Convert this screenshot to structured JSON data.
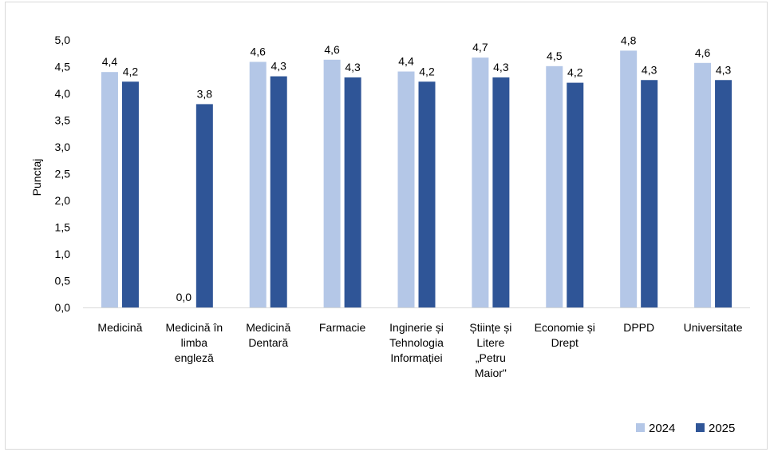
{
  "chart_data": {
    "type": "bar",
    "ylabel": "Punctaj",
    "xlabel": "",
    "ylim": [
      0,
      5
    ],
    "yticks": [
      "0,0",
      "0,5",
      "1,0",
      "1,5",
      "2,0",
      "2,5",
      "3,0",
      "3,5",
      "4,0",
      "4,5",
      "5,0"
    ],
    "grid": false,
    "legend_position": "bottom-right",
    "categories": [
      [
        "Medicină"
      ],
      [
        "Medicină în",
        "limba",
        "engleză"
      ],
      [
        "Medicină",
        "Dentară"
      ],
      [
        "Farmacie"
      ],
      [
        "Inginerie și",
        "Tehnologia",
        "Informației"
      ],
      [
        "Științe și",
        "Litere",
        "„Petru",
        "Maior\""
      ],
      [
        "Economie și",
        "Drept"
      ],
      [
        "DPPD"
      ],
      [
        "Universitate"
      ]
    ],
    "series": [
      {
        "name": "2024",
        "color": "#b4c7e7",
        "values": [
          4.4,
          0.0,
          4.59,
          4.63,
          4.41,
          4.67,
          4.51,
          4.8,
          4.57
        ],
        "labels": [
          "4,4",
          "0,0",
          "4,6",
          "4,6",
          "4,4",
          "4,7",
          "4,5",
          "4,8",
          "4,6"
        ]
      },
      {
        "name": "2025",
        "color": "#2f5597",
        "values": [
          4.22,
          3.8,
          4.32,
          4.3,
          4.22,
          4.3,
          4.2,
          4.25,
          4.25
        ],
        "labels": [
          "4,2",
          "3,8",
          "4,3",
          "4,3",
          "4,2",
          "4,3",
          "4,2",
          "4,3",
          "4,3"
        ]
      }
    ]
  }
}
